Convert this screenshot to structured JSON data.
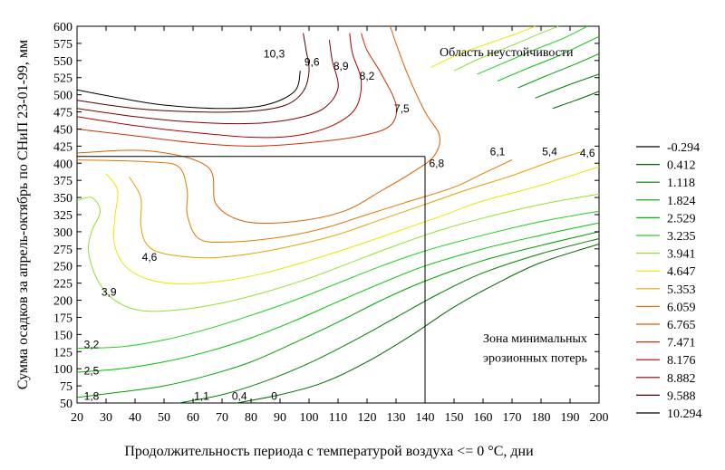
{
  "chart_data": {
    "type": "contour",
    "xlabel": "Продолжительность периода с температурой воздуха <= 0 °C, дни",
    "ylabel": "Сумма осадков за апрель-октябрь по СНиП 23-01-99, мм",
    "xlim": [
      20,
      200
    ],
    "ylim": [
      50,
      600
    ],
    "x_ticks": [
      20,
      30,
      40,
      50,
      60,
      70,
      80,
      90,
      100,
      110,
      120,
      130,
      140,
      150,
      160,
      170,
      180,
      190,
      200
    ],
    "y_ticks": [
      50,
      75,
      100,
      125,
      150,
      175,
      200,
      225,
      250,
      275,
      300,
      325,
      350,
      375,
      400,
      425,
      450,
      475,
      500,
      525,
      550,
      575,
      600
    ],
    "grid": false,
    "legend": "right",
    "legend_levels": [
      "-0.294",
      "0.412",
      "1.118",
      "1.824",
      "2.529",
      "3.235",
      "3.941",
      "4.647",
      "5.353",
      "6.059",
      "6.765",
      "7.471",
      "8.176",
      "8.882",
      "9.588",
      "10.294"
    ],
    "legend_colors": [
      "#000000",
      "#006400",
      "#008000",
      "#00a000",
      "#00c000",
      "#20d020",
      "#90e030",
      "#e8e800",
      "#e8a000",
      "#e07800",
      "#d86000",
      "#c83000",
      "#b00000",
      "#800000",
      "#500000",
      "#000000"
    ],
    "contour_labels": [
      {
        "text": "10,3",
        "x": 88,
        "y": 560
      },
      {
        "text": "9,6",
        "x": 101,
        "y": 548
      },
      {
        "text": "8,9",
        "x": 111,
        "y": 542
      },
      {
        "text": "8,2",
        "x": 120,
        "y": 527
      },
      {
        "text": "7,5",
        "x": 132,
        "y": 480
      },
      {
        "text": "6,8",
        "x": 144,
        "y": 400
      },
      {
        "text": "6,1",
        "x": 165,
        "y": 417
      },
      {
        "text": "5,4",
        "x": 183,
        "y": 417
      },
      {
        "text": "4,6",
        "x": 196,
        "y": 415
      },
      {
        "text": "4,6",
        "x": 45,
        "y": 263
      },
      {
        "text": "3,9",
        "x": 31,
        "y": 212
      },
      {
        "text": "3,2",
        "x": 25,
        "y": 135
      },
      {
        "text": "2,5",
        "x": 25,
        "y": 97
      },
      {
        "text": "1,8",
        "x": 25,
        "y": 60
      },
      {
        "text": "1,1",
        "x": 63,
        "y": 60
      },
      {
        "text": "0,4",
        "x": 76,
        "y": 60
      },
      {
        "text": "0",
        "x": 88,
        "y": 60
      }
    ],
    "reference_lines": [
      {
        "from": [
          20,
          410
        ],
        "to": [
          140,
          410
        ]
      },
      {
        "from": [
          140,
          410
        ],
        "to": [
          140,
          50
        ]
      }
    ],
    "annotations": [
      {
        "text": "Область неустойчивости",
        "x": 145,
        "y": 563
      },
      {
        "text": "Зона минимальных",
        "x": 160,
        "y": 145
      },
      {
        "text": "эрозионных потерь",
        "x": 160,
        "y": 117
      }
    ],
    "contours": [
      {
        "level": "0.412",
        "points": [
          [
            75,
            50
          ],
          [
            90,
            62
          ],
          [
            105,
            80
          ],
          [
            120,
            110
          ],
          [
            135,
            148
          ],
          [
            150,
            190
          ],
          [
            165,
            225
          ],
          [
            180,
            255
          ],
          [
            200,
            282
          ]
        ]
      },
      {
        "level": "1.118",
        "points": [
          [
            55,
            50
          ],
          [
            70,
            62
          ],
          [
            85,
            82
          ],
          [
            100,
            108
          ],
          [
            115,
            140
          ],
          [
            130,
            175
          ],
          [
            145,
            210
          ],
          [
            160,
            240
          ],
          [
            180,
            268
          ],
          [
            200,
            290
          ]
        ]
      },
      {
        "level": "1.824",
        "points": [
          [
            20,
            58
          ],
          [
            35,
            66
          ],
          [
            50,
            75
          ],
          [
            65,
            90
          ],
          [
            80,
            110
          ],
          [
            95,
            138
          ],
          [
            110,
            168
          ],
          [
            125,
            200
          ],
          [
            140,
            228
          ],
          [
            160,
            258
          ],
          [
            180,
            280
          ],
          [
            200,
            300
          ]
        ]
      },
      {
        "level": "2.529",
        "points": [
          [
            20,
            95
          ],
          [
            35,
            100
          ],
          [
            50,
            110
          ],
          [
            65,
            125
          ],
          [
            80,
            145
          ],
          [
            95,
            170
          ],
          [
            110,
            198
          ],
          [
            125,
            225
          ],
          [
            140,
            250
          ],
          [
            160,
            275
          ],
          [
            180,
            295
          ],
          [
            200,
            313
          ]
        ]
      },
      {
        "level": "3.235",
        "points": [
          [
            20,
            130
          ],
          [
            35,
            132
          ],
          [
            50,
            142
          ],
          [
            65,
            158
          ],
          [
            80,
            178
          ],
          [
            95,
            200
          ],
          [
            110,
            225
          ],
          [
            125,
            250
          ],
          [
            140,
            272
          ],
          [
            160,
            295
          ],
          [
            180,
            315
          ],
          [
            200,
            330
          ]
        ]
      },
      {
        "level": "3.941",
        "points": [
          [
            20,
            345
          ],
          [
            25,
            350
          ],
          [
            28,
            330
          ],
          [
            25,
            300
          ],
          [
            24,
            270
          ],
          [
            27,
            230
          ],
          [
            33,
            200
          ],
          [
            42,
            185
          ],
          [
            55,
            186
          ],
          [
            70,
            196
          ],
          [
            85,
            212
          ],
          [
            100,
            232
          ],
          [
            115,
            256
          ],
          [
            130,
            280
          ],
          [
            145,
            302
          ],
          [
            160,
            320
          ],
          [
            180,
            340
          ],
          [
            200,
            355
          ]
        ]
      },
      {
        "level": "4.647",
        "points": [
          [
            30,
            385
          ],
          [
            34,
            360
          ],
          [
            33,
            320
          ],
          [
            33,
            280
          ],
          [
            37,
            248
          ],
          [
            45,
            230
          ],
          [
            55,
            224
          ],
          [
            70,
            228
          ],
          [
            85,
            240
          ],
          [
            100,
            258
          ],
          [
            115,
            278
          ],
          [
            130,
            300
          ],
          [
            145,
            322
          ],
          [
            160,
            345
          ],
          [
            180,
            368
          ],
          [
            200,
            395
          ]
        ]
      },
      {
        "level": "5.353",
        "points": [
          [
            38,
            380
          ],
          [
            42,
            350
          ],
          [
            42,
            310
          ],
          [
            44,
            282
          ],
          [
            50,
            268
          ],
          [
            65,
            262
          ],
          [
            80,
            268
          ],
          [
            95,
            280
          ],
          [
            110,
            296
          ],
          [
            125,
            318
          ],
          [
            140,
            340
          ],
          [
            155,
            362
          ],
          [
            170,
            382
          ],
          [
            185,
            405
          ],
          [
            195,
            418
          ]
        ]
      },
      {
        "level": "6.059",
        "points": [
          [
            20,
            405
          ],
          [
            45,
            402
          ],
          [
            55,
            395
          ],
          [
            58,
            360
          ],
          [
            58,
            325
          ],
          [
            62,
            290
          ],
          [
            72,
            285
          ],
          [
            90,
            292
          ],
          [
            105,
            305
          ],
          [
            120,
            325
          ],
          [
            135,
            345
          ],
          [
            150,
            365
          ],
          [
            160,
            385
          ],
          [
            170,
            405
          ]
        ]
      },
      {
        "level": "6.765",
        "points": [
          [
            20,
            415
          ],
          [
            45,
            418
          ],
          [
            65,
            395
          ],
          [
            68,
            340
          ],
          [
            78,
            315
          ],
          [
            95,
            315
          ],
          [
            112,
            330
          ],
          [
            125,
            360
          ],
          [
            135,
            385
          ],
          [
            143,
            410
          ],
          [
            145,
            440
          ],
          [
            140,
            475
          ],
          [
            134,
            530
          ],
          [
            130,
            575
          ],
          [
            128,
            600
          ]
        ]
      },
      {
        "level": "7.471",
        "points": [
          [
            20,
            450
          ],
          [
            40,
            440
          ],
          [
            60,
            430
          ],
          [
            80,
            425
          ],
          [
            100,
            430
          ],
          [
            118,
            440
          ],
          [
            128,
            455
          ],
          [
            130,
            485
          ],
          [
            125,
            530
          ],
          [
            120,
            565
          ],
          [
            118,
            590
          ]
        ]
      },
      {
        "level": "8.176",
        "points": [
          [
            20,
            468
          ],
          [
            40,
            455
          ],
          [
            60,
            445
          ],
          [
            80,
            438
          ],
          [
            95,
            440
          ],
          [
            108,
            455
          ],
          [
            116,
            480
          ],
          [
            118,
            520
          ],
          [
            115,
            560
          ],
          [
            114,
            590
          ]
        ]
      },
      {
        "level": "8.882",
        "points": [
          [
            20,
            480
          ],
          [
            40,
            468
          ],
          [
            60,
            460
          ],
          [
            80,
            458
          ],
          [
            95,
            465
          ],
          [
            105,
            480
          ],
          [
            110,
            510
          ],
          [
            108,
            550
          ],
          [
            107,
            580
          ]
        ]
      },
      {
        "level": "9.588",
        "points": [
          [
            20,
            492
          ],
          [
            40,
            480
          ],
          [
            60,
            475
          ],
          [
            80,
            476
          ],
          [
            92,
            485
          ],
          [
            98,
            505
          ],
          [
            100,
            535
          ],
          [
            99,
            565
          ],
          [
            98,
            590
          ]
        ]
      },
      {
        "level": "10.294",
        "points": [
          [
            20,
            507
          ],
          [
            35,
            495
          ],
          [
            50,
            485
          ],
          [
            70,
            480
          ],
          [
            85,
            485
          ],
          [
            95,
            505
          ],
          [
            97,
            535
          ]
        ]
      },
      {
        "level": "4.647",
        "points": [
          [
            142,
            540
          ],
          [
            152,
            560
          ],
          [
            162,
            575
          ],
          [
            172,
            590
          ],
          [
            178,
            600
          ]
        ]
      },
      {
        "level": "3.941",
        "points": [
          [
            150,
            535
          ],
          [
            160,
            555
          ],
          [
            170,
            572
          ],
          [
            180,
            590
          ],
          [
            186,
            600
          ]
        ]
      },
      {
        "level": "3.235",
        "points": [
          [
            158,
            530
          ],
          [
            168,
            548
          ],
          [
            178,
            566
          ],
          [
            188,
            583
          ],
          [
            196,
            600
          ]
        ]
      },
      {
        "level": "2.529",
        "points": [
          [
            165,
            520
          ],
          [
            175,
            538
          ],
          [
            185,
            555
          ],
          [
            195,
            575
          ],
          [
            200,
            585
          ]
        ]
      },
      {
        "level": "1.824",
        "points": [
          [
            172,
            510
          ],
          [
            182,
            528
          ],
          [
            192,
            545
          ],
          [
            200,
            560
          ]
        ]
      },
      {
        "level": "1.118",
        "points": [
          [
            178,
            495
          ],
          [
            188,
            512
          ],
          [
            200,
            530
          ]
        ]
      },
      {
        "level": "0.412",
        "points": [
          [
            184,
            480
          ],
          [
            194,
            495
          ],
          [
            200,
            505
          ]
        ]
      }
    ]
  }
}
